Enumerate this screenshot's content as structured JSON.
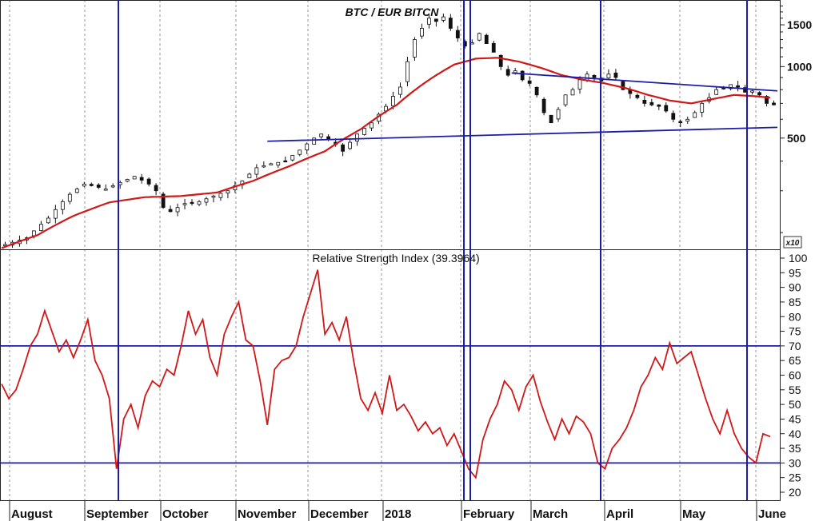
{
  "colors": {
    "accent_red": "#d01818",
    "blue": "#1c1ca8",
    "grid": "#9a9a9a"
  },
  "chart_data": [
    {
      "type": "candlestick",
      "title": "BTC / EUR BITCN",
      "scale": "log",
      "ylim": [
        170,
        1850
      ],
      "y_ticks": [
        500,
        1000,
        1500
      ],
      "multiplier_label": "x10",
      "overlay": {
        "name": "moving average",
        "color": "#d01818"
      },
      "price_path": [
        [
          0,
          178
        ],
        [
          3,
          190
        ],
        [
          6,
          230
        ],
        [
          9,
          290
        ],
        [
          11,
          320
        ],
        [
          14,
          305
        ],
        [
          16,
          325
        ],
        [
          18,
          345
        ],
        [
          20,
          320
        ],
        [
          21,
          300
        ],
        [
          22,
          255
        ],
        [
          23,
          245
        ],
        [
          25,
          265
        ],
        [
          27,
          270
        ],
        [
          29,
          285
        ],
        [
          31,
          300
        ],
        [
          33,
          330
        ],
        [
          35,
          375
        ],
        [
          37,
          390
        ],
        [
          39,
          400
        ],
        [
          41,
          445
        ],
        [
          43,
          500
        ],
        [
          44,
          520
        ],
        [
          46,
          470
        ],
        [
          47,
          440
        ],
        [
          49,
          520
        ],
        [
          51,
          580
        ],
        [
          53,
          680
        ],
        [
          55,
          820
        ],
        [
          56,
          1050
        ],
        [
          57,
          1300
        ],
        [
          58,
          1450
        ],
        [
          59,
          1600
        ],
        [
          60,
          1550
        ],
        [
          61,
          1620
        ],
        [
          62,
          1450
        ],
        [
          63,
          1320
        ],
        [
          64,
          1220
        ],
        [
          65,
          1260
        ],
        [
          66,
          1380
        ],
        [
          67,
          1250
        ],
        [
          68,
          1150
        ],
        [
          69,
          1000
        ],
        [
          70,
          920
        ],
        [
          71,
          960
        ],
        [
          72,
          880
        ],
        [
          73,
          850
        ],
        [
          74,
          760
        ],
        [
          75,
          640
        ],
        [
          76,
          580
        ],
        [
          77,
          660
        ],
        [
          78,
          760
        ],
        [
          79,
          800
        ],
        [
          80,
          880
        ],
        [
          81,
          930
        ],
        [
          82,
          900
        ],
        [
          83,
          870
        ],
        [
          84,
          930
        ],
        [
          85,
          900
        ],
        [
          86,
          800
        ],
        [
          87,
          770
        ],
        [
          88,
          740
        ],
        [
          89,
          700
        ],
        [
          90,
          690
        ],
        [
          91,
          680
        ],
        [
          92,
          650
        ],
        [
          93,
          600
        ],
        [
          94,
          580
        ],
        [
          95,
          600
        ],
        [
          96,
          640
        ],
        [
          97,
          700
        ],
        [
          98,
          740
        ],
        [
          99,
          800
        ],
        [
          100,
          810
        ],
        [
          101,
          840
        ],
        [
          102,
          820
        ],
        [
          103,
          780
        ],
        [
          104,
          790
        ],
        [
          105,
          760
        ],
        [
          106,
          700
        ],
        [
          107,
          690
        ]
      ],
      "moving_average_path": [
        [
          0,
          172
        ],
        [
          5,
          195
        ],
        [
          10,
          235
        ],
        [
          15,
          268
        ],
        [
          20,
          282
        ],
        [
          25,
          285
        ],
        [
          30,
          295
        ],
        [
          35,
          330
        ],
        [
          40,
          380
        ],
        [
          45,
          440
        ],
        [
          50,
          545
        ],
        [
          55,
          690
        ],
        [
          60,
          900
        ],
        [
          63,
          1020
        ],
        [
          66,
          1080
        ],
        [
          69,
          1090
        ],
        [
          72,
          1050
        ],
        [
          75,
          990
        ],
        [
          78,
          920
        ],
        [
          81,
          880
        ],
        [
          84,
          850
        ],
        [
          87,
          810
        ],
        [
          90,
          760
        ],
        [
          93,
          720
        ],
        [
          96,
          700
        ],
        [
          99,
          730
        ],
        [
          102,
          760
        ],
        [
          105,
          750
        ],
        [
          107,
          740
        ]
      ],
      "trendlines": [
        {
          "name": "support",
          "from": [
            37,
            485
          ],
          "to": [
            108,
            555
          ]
        },
        {
          "name": "resistance",
          "from": [
            71,
            940
          ],
          "to": [
            108,
            790
          ]
        }
      ]
    },
    {
      "type": "line",
      "title": "Relative Strength Index (39.3964)",
      "ylim": [
        20,
        100
      ],
      "y_ticks": [
        20,
        25,
        30,
        35,
        40,
        45,
        50,
        55,
        60,
        65,
        70,
        75,
        80,
        85,
        90,
        95,
        100
      ],
      "reference_lines": [
        70,
        30
      ],
      "series": [
        {
          "values": [
            [
              0,
              57
            ],
            [
              1,
              52
            ],
            [
              2,
              55
            ],
            [
              3,
              62
            ],
            [
              4,
              70
            ],
            [
              5,
              74
            ],
            [
              6,
              82
            ],
            [
              7,
              75
            ],
            [
              8,
              68
            ],
            [
              9,
              72
            ],
            [
              10,
              66
            ],
            [
              11,
              72
            ],
            [
              12,
              79
            ],
            [
              13,
              65
            ],
            [
              14,
              60
            ],
            [
              15,
              52
            ],
            [
              16,
              28
            ],
            [
              17,
              45
            ],
            [
              18,
              50
            ],
            [
              19,
              42
            ],
            [
              20,
              53
            ],
            [
              21,
              58
            ],
            [
              22,
              56
            ],
            [
              23,
              62
            ],
            [
              24,
              60
            ],
            [
              25,
              70
            ],
            [
              26,
              82
            ],
            [
              27,
              74
            ],
            [
              28,
              79
            ],
            [
              29,
              66
            ],
            [
              30,
              60
            ],
            [
              31,
              74
            ],
            [
              32,
              80
            ],
            [
              33,
              85
            ],
            [
              34,
              72
            ],
            [
              35,
              70
            ],
            [
              36,
              58
            ],
            [
              37,
              43
            ],
            [
              38,
              62
            ],
            [
              39,
              65
            ],
            [
              40,
              66
            ],
            [
              41,
              70
            ],
            [
              42,
              80
            ],
            [
              43,
              88
            ],
            [
              44,
              96
            ],
            [
              45,
              74
            ],
            [
              46,
              78
            ],
            [
              47,
              72
            ],
            [
              48,
              80
            ],
            [
              49,
              65
            ],
            [
              50,
              52
            ],
            [
              51,
              48
            ],
            [
              52,
              54
            ],
            [
              53,
              47
            ],
            [
              54,
              60
            ],
            [
              55,
              48
            ],
            [
              56,
              50
            ],
            [
              57,
              46
            ],
            [
              58,
              41
            ],
            [
              59,
              44
            ],
            [
              60,
              40
            ],
            [
              61,
              42
            ],
            [
              62,
              36
            ],
            [
              63,
              40
            ],
            [
              64,
              34
            ],
            [
              65,
              28
            ],
            [
              66,
              25
            ],
            [
              67,
              38
            ],
            [
              68,
              45
            ],
            [
              69,
              50
            ],
            [
              70,
              58
            ],
            [
              71,
              55
            ],
            [
              72,
              48
            ],
            [
              73,
              56
            ],
            [
              74,
              60
            ],
            [
              75,
              51
            ],
            [
              76,
              44
            ],
            [
              77,
              38
            ],
            [
              78,
              45
            ],
            [
              79,
              40
            ],
            [
              80,
              46
            ],
            [
              81,
              44
            ],
            [
              82,
              40
            ],
            [
              83,
              30
            ],
            [
              84,
              28
            ],
            [
              85,
              35
            ],
            [
              86,
              38
            ],
            [
              87,
              42
            ],
            [
              88,
              48
            ],
            [
              89,
              56
            ],
            [
              90,
              60
            ],
            [
              91,
              66
            ],
            [
              92,
              62
            ],
            [
              93,
              71
            ],
            [
              94,
              64
            ],
            [
              95,
              66
            ],
            [
              96,
              68
            ],
            [
              97,
              60
            ],
            [
              98,
              52
            ],
            [
              99,
              45
            ],
            [
              100,
              40
            ],
            [
              101,
              48
            ],
            [
              102,
              40
            ],
            [
              103,
              35
            ],
            [
              104,
              32
            ],
            [
              105,
              30
            ],
            [
              106,
              40
            ],
            [
              107,
              39
            ]
          ]
        }
      ]
    }
  ],
  "month_labels": [
    "August",
    "September",
    "October",
    "November",
    "December",
    "2018",
    "February",
    "March",
    "April",
    "May",
    "June"
  ]
}
